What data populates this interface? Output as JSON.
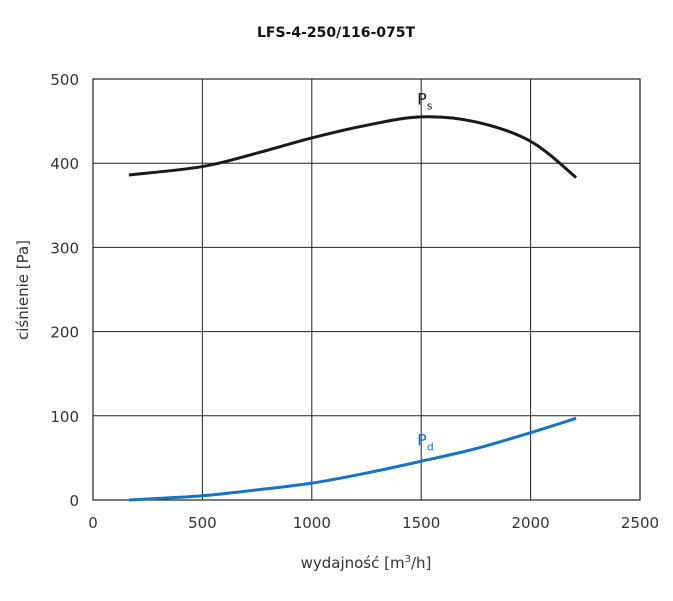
{
  "chart_data": {
    "type": "line",
    "title": "LFS-4-250/116-075T",
    "xlabel": "wydajność [m³/h]",
    "xlabel_parts": {
      "base": "wydajność [m",
      "sup": "3",
      "tail": "/h]"
    },
    "ylabel": "ciśnienie [Pa]",
    "xlim": [
      0,
      2500
    ],
    "ylim": [
      0,
      500
    ],
    "xticks": [
      "0",
      "500",
      "1000",
      "1500",
      "2000",
      "2500"
    ],
    "yticks": [
      "0",
      "100",
      "200",
      "300",
      "400",
      "500"
    ],
    "grid": true,
    "series": [
      {
        "name": "Ps",
        "label_base": "P",
        "label_sub": "s",
        "color": "#1a1a1a",
        "label_at": [
          1600,
          470
        ],
        "x": [
          164,
          500,
          750,
          1000,
          1250,
          1500,
          1750,
          2000,
          2208
        ],
        "y": [
          386,
          396,
          412,
          430,
          445,
          455,
          449,
          426,
          383
        ]
      },
      {
        "name": "Pd",
        "label_base": "P",
        "label_sub": "d",
        "color": "#1874c1",
        "label_at": [
          1600,
          65
        ],
        "x": [
          164,
          500,
          750,
          1000,
          1250,
          1500,
          1750,
          2000,
          2208
        ],
        "y": [
          0,
          5,
          12,
          20,
          32,
          46,
          61,
          80,
          97
        ]
      }
    ]
  }
}
